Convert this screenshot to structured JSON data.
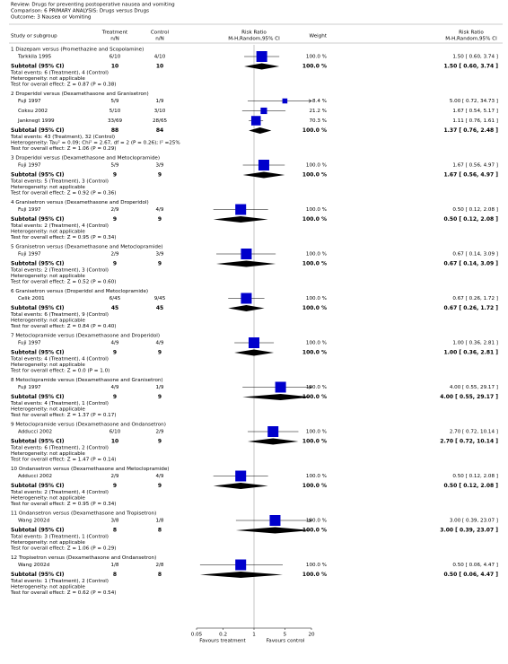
{
  "header": {
    "review": "Review:  Drugs for preventing postoperative nausea and vomiting",
    "comparison": "Comparison:  6 PRIMARY ANALYSIS: Drugs versus Drugs",
    "outcome": "Outcome:  3 Nausea or Vomiting"
  },
  "chart_data": {
    "type": "forest",
    "xscale": "log",
    "xlim": [
      0.05,
      20
    ],
    "xticks": [
      0.05,
      0.2,
      1,
      5,
      20
    ],
    "square_color": "#0000cc",
    "diamond_color": "#000000",
    "favours_left": "Favours treatment",
    "favours_right": "Favours control",
    "columns": {
      "study": "Study or subgroup",
      "treatment": [
        "Treatment",
        "n/N"
      ],
      "control": [
        "Control",
        "n/N"
      ],
      "plot": [
        "Risk Ratio",
        "M-H,Random,95% CI"
      ],
      "weight": "Weight",
      "effect": [
        "Risk Ratio",
        "M-H,Random,95% CI"
      ]
    },
    "groups": [
      {
        "title": "1 Diazepam versus (Promethazine and Scopolamine)",
        "studies": [
          {
            "name": "Tarkkila 1995",
            "treatment": "6/10",
            "control": "4/10",
            "weight": 100,
            "weight_label": "100.0 %",
            "rr": 1.5,
            "ci_low": 0.6,
            "ci_high": 3.74,
            "rr_label": "1.50 [ 0.60, 3.74 ]"
          }
        ],
        "subtotal": {
          "label": "Subtotal (95% CI)",
          "treatment": 10,
          "control": 10,
          "weight": 100,
          "weight_label": "100.0 %",
          "rr": 1.5,
          "ci_low": 0.6,
          "ci_high": 3.74,
          "rr_label": "1.50 [ 0.60, 3.74 ]"
        },
        "notes": [
          "Total events: 6 (Treatment), 4 (Control)",
          "Heterogeneity: not applicable",
          "Test for overall effect: Z = 0.87 (P = 0.38)"
        ]
      },
      {
        "title": "2 Droperidol versus (Dexamethasone and Granisetron)",
        "studies": [
          {
            "name": "Fuji 1997",
            "treatment": "5/9",
            "control": "1/9",
            "weight": 8.4,
            "weight_label": "8.4 %",
            "rr": 5,
            "ci_low": 0.72,
            "ci_high": 34.73,
            "rr_label": "5.00 [ 0.72, 34.73 ]"
          },
          {
            "name": "Coksu 2002",
            "treatment": "5/10",
            "control": "3/10",
            "weight": 21.2,
            "weight_label": "21.2 %",
            "rr": 1.67,
            "ci_low": 0.54,
            "ci_high": 5.17,
            "rr_label": "1.67 [ 0.54, 5.17 ]"
          },
          {
            "name": "Janknegt 1999",
            "treatment": "33/69",
            "control": "28/65",
            "weight": 70.3,
            "weight_label": "70.3 %",
            "rr": 1.11,
            "ci_low": 0.76,
            "ci_high": 1.61,
            "rr_label": "1.11 [ 0.76, 1.61 ]"
          }
        ],
        "subtotal": {
          "label": "Subtotal (95% CI)",
          "treatment": 88,
          "control": 84,
          "weight": 100,
          "weight_label": "100.0 %",
          "rr": 1.37,
          "ci_low": 0.76,
          "ci_high": 2.48,
          "rr_label": "1.37 [ 0.76, 2.48 ]"
        },
        "notes": [
          "Total events: 43 (Treatment), 32 (Control)",
          "Heterogeneity: Tau² = 0.09; Chi² = 2.67, df = 2 (P = 0.26); I² =25%",
          "Test for overall effect: Z = 1.06 (P = 0.29)"
        ]
      },
      {
        "title": "3 Droperidol versus (Dexamethasone and Metoclopramide)",
        "studies": [
          {
            "name": "Fuji 1997",
            "treatment": "5/9",
            "control": "3/9",
            "weight": 100,
            "weight_label": "100.0 %",
            "rr": 1.67,
            "ci_low": 0.56,
            "ci_high": 4.97,
            "rr_label": "1.67 [ 0.56, 4.97 ]"
          }
        ],
        "subtotal": {
          "label": "Subtotal (95% CI)",
          "treatment": 9,
          "control": 9,
          "weight": 100,
          "weight_label": "100.0 %",
          "rr": 1.67,
          "ci_low": 0.56,
          "ci_high": 4.97,
          "rr_label": "1.67 [ 0.56, 4.97 ]"
        },
        "notes": [
          "Total events: 5 (Treatment), 3 (Control)",
          "Heterogeneity: not applicable",
          "Test for overall effect: Z = 0.92 (P = 0.36)"
        ]
      },
      {
        "title": "4 Granisetron versus (Dexamethasone and Droperidol)",
        "studies": [
          {
            "name": "Fuji 1997",
            "treatment": "2/9",
            "control": "4/9",
            "weight": 100,
            "weight_label": "100.0 %",
            "rr": 0.5,
            "ci_low": 0.12,
            "ci_high": 2.08,
            "rr_label": "0.50 [ 0.12, 2.08 ]"
          }
        ],
        "subtotal": {
          "label": "Subtotal (95% CI)",
          "treatment": 9,
          "control": 9,
          "weight": 100,
          "weight_label": "100.0 %",
          "rr": 0.5,
          "ci_low": 0.12,
          "ci_high": 2.08,
          "rr_label": "0.50 [ 0.12, 2.08 ]"
        },
        "notes": [
          "Total events: 2 (Treatment), 4 (Control)",
          "Heterogeneity: not applicable",
          "Test for overall effect: Z = 0.95 (P = 0.34)"
        ]
      },
      {
        "title": "5 Granisetron versus (Dexamethasone and Metoclopramide)",
        "studies": [
          {
            "name": "Fuji 1997",
            "treatment": "2/9",
            "control": "3/9",
            "weight": 100,
            "weight_label": "100.0 %",
            "rr": 0.67,
            "ci_low": 0.14,
            "ci_high": 3.09,
            "rr_label": "0.67 [ 0.14, 3.09 ]"
          }
        ],
        "subtotal": {
          "label": "Subtotal (95% CI)",
          "treatment": 9,
          "control": 9,
          "weight": 100,
          "weight_label": "100.0 %",
          "rr": 0.67,
          "ci_low": 0.14,
          "ci_high": 3.09,
          "rr_label": "0.67 [ 0.14, 3.09 ]"
        },
        "notes": [
          "Total events: 2 (Treatment), 3 (Control)",
          "Heterogeneity: not applicable",
          "Test for overall effect: Z = 0.52 (P = 0.60)"
        ]
      },
      {
        "title": "6 Granisetron versus (Droperidol and Metoclopramide)",
        "studies": [
          {
            "name": "Celik 2001",
            "treatment": "6/45",
            "control": "9/45",
            "weight": 100,
            "weight_label": "100.0 %",
            "rr": 0.67,
            "ci_low": 0.26,
            "ci_high": 1.72,
            "rr_label": "0.67 [ 0.26, 1.72 ]"
          }
        ],
        "subtotal": {
          "label": "Subtotal (95% CI)",
          "treatment": 45,
          "control": 45,
          "weight": 100,
          "weight_label": "100.0 %",
          "rr": 0.67,
          "ci_low": 0.26,
          "ci_high": 1.72,
          "rr_label": "0.67 [ 0.26, 1.72 ]"
        },
        "notes": [
          "Total events: 6 (Treatment), 9 (Control)",
          "Heterogeneity: not applicable",
          "Test for overall effect: Z = 0.84 (P = 0.40)"
        ]
      },
      {
        "title": "7 Metoclopramide versus (Dexamethasone and Droperidol)",
        "studies": [
          {
            "name": "Fuji 1997",
            "treatment": "4/9",
            "control": "4/9",
            "weight": 100,
            "weight_label": "100.0 %",
            "rr": 1,
            "ci_low": 0.36,
            "ci_high": 2.81,
            "rr_label": "1.00 [ 0.36, 2.81 ]"
          }
        ],
        "subtotal": {
          "label": "Subtotal (95% CI)",
          "treatment": 9,
          "control": 9,
          "weight": 100,
          "weight_label": "100.0 %",
          "rr": 1,
          "ci_low": 0.36,
          "ci_high": 2.81,
          "rr_label": "1.00 [ 0.36, 2.81 ]"
        },
        "notes": [
          "Total events: 4 (Treatment), 4 (Control)",
          "Heterogeneity: not applicable",
          "Test for overall effect: Z = 0.0 (P = 1.0)"
        ]
      },
      {
        "title": "8 Metoclopramide versus (Dexamethasone and Granisetron)",
        "studies": [
          {
            "name": "Fuji 1997",
            "treatment": "4/9",
            "control": "1/9",
            "weight": 100,
            "weight_label": "100.0 %",
            "rr": 4,
            "ci_low": 0.55,
            "ci_high": 29.17,
            "rr_label": "4.00 [ 0.55, 29.17 ]"
          }
        ],
        "subtotal": {
          "label": "Subtotal (95% CI)",
          "treatment": 9,
          "control": 9,
          "weight": 100,
          "weight_label": "100.0 %",
          "rr": 4,
          "ci_low": 0.55,
          "ci_high": 29.17,
          "rr_label": "4.00 [ 0.55, 29.17 ]"
        },
        "notes": [
          "Total events: 4 (Treatment), 1 (Control)",
          "Heterogeneity: not applicable",
          "Test for overall effect: Z = 1.37 (P = 0.17)"
        ]
      },
      {
        "title": "9 Metoclopramide versus (Dexamethasone and Ondansetron)",
        "studies": [
          {
            "name": "Adducci 2002",
            "treatment": "6/10",
            "control": "2/9",
            "weight": 100,
            "weight_label": "100.0 %",
            "rr": 2.7,
            "ci_low": 0.72,
            "ci_high": 10.14,
            "rr_label": "2.70 [ 0.72, 10.14 ]"
          }
        ],
        "subtotal": {
          "label": "Subtotal (95% CI)",
          "treatment": 10,
          "control": 9,
          "weight": 100,
          "weight_label": "100.0 %",
          "rr": 2.7,
          "ci_low": 0.72,
          "ci_high": 10.14,
          "rr_label": "2.70 [ 0.72, 10.14 ]"
        },
        "notes": [
          "Total events: 6 (Treatment), 2 (Control)",
          "Heterogeneity: not applicable",
          "Test for overall effect: Z = 1.47 (P = 0.14)"
        ]
      },
      {
        "title": "10 Ondansetron versus (Dexamethasone and Metoclopramide)",
        "studies": [
          {
            "name": "Adducci 2002",
            "treatment": "2/9",
            "control": "4/9",
            "weight": 100,
            "weight_label": "100.0 %",
            "rr": 0.5,
            "ci_low": 0.12,
            "ci_high": 2.08,
            "rr_label": "0.50 [ 0.12, 2.08 ]"
          }
        ],
        "subtotal": {
          "label": "Subtotal (95% CI)",
          "treatment": 9,
          "control": 9,
          "weight": 100,
          "weight_label": "100.0 %",
          "rr": 0.5,
          "ci_low": 0.12,
          "ci_high": 2.08,
          "rr_label": "0.50 [ 0.12, 2.08 ]"
        },
        "notes": [
          "Total events: 2 (Treatment), 4 (Control)",
          "Heterogeneity: not applicable",
          "Test for overall effect: Z = 0.95 (P = 0.34)"
        ]
      },
      {
        "title": "11 Ondansetron versus (Dexamethasone and Tropisetron)",
        "studies": [
          {
            "name": "Wang 2002d",
            "treatment": "3/8",
            "control": "1/8",
            "weight": 100,
            "weight_label": "100.0 %",
            "rr": 3,
            "ci_low": 0.39,
            "ci_high": 23.07,
            "rr_label": "3.00 [ 0.39, 23.07 ]"
          }
        ],
        "subtotal": {
          "label": "Subtotal (95% CI)",
          "treatment": 8,
          "control": 8,
          "weight": 100,
          "weight_label": "100.0 %",
          "rr": 3,
          "ci_low": 0.39,
          "ci_high": 23.07,
          "rr_label": "3.00 [ 0.39, 23.07 ]"
        },
        "notes": [
          "Total events: 3 (Treatment), 1 (Control)",
          "Heterogeneity: not applicable",
          "Test for overall effect: Z = 1.06 (P = 0.29)"
        ]
      },
      {
        "title": "12 Tropisetron versus (Dexamethasone and Ondansetron)",
        "studies": [
          {
            "name": "Wang 2002d",
            "treatment": "1/8",
            "control": "2/8",
            "weight": 100,
            "weight_label": "100.0 %",
            "rr": 0.5,
            "ci_low": 0.06,
            "ci_high": 4.47,
            "rr_label": "0.50 [ 0.06, 4.47 ]"
          }
        ],
        "subtotal": {
          "label": "Subtotal (95% CI)",
          "treatment": 8,
          "control": 8,
          "weight": 100,
          "weight_label": "100.0 %",
          "rr": 0.5,
          "ci_low": 0.06,
          "ci_high": 4.47,
          "rr_label": "0.50 [ 0.06, 4.47 ]"
        },
        "notes": [
          "Total events: 1 (Treatment), 2 (Control)",
          "Heterogeneity: not applicable",
          "Test for overall effect: Z = 0.62 (P = 0.54)"
        ]
      }
    ]
  }
}
